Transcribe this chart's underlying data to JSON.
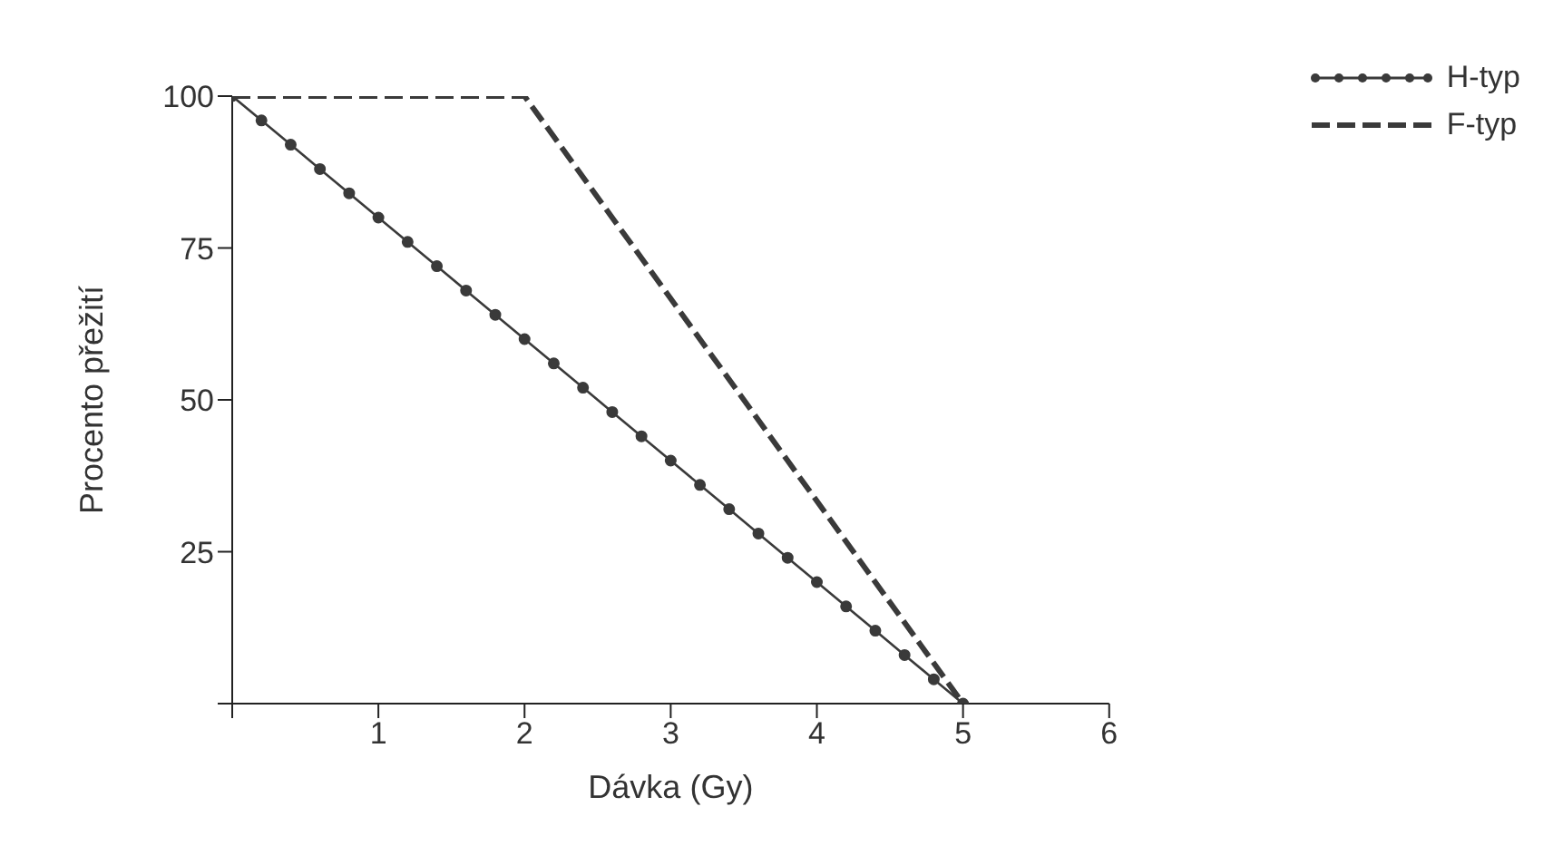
{
  "chart_data": {
    "type": "line",
    "xlabel": "Dávka (Gy)",
    "ylabel": "Procento přežití",
    "xlim": [
      0,
      6
    ],
    "ylim": [
      0,
      100
    ],
    "xticks": [
      {
        "value": 0,
        "label": null
      },
      1,
      2,
      3,
      4,
      5,
      6
    ],
    "yticks": [
      {
        "value": 0,
        "label": null
      },
      25,
      50,
      75,
      100
    ],
    "grid": false,
    "legend": "top right",
    "series": [
      {
        "name": "H-typ",
        "color": "#3a3a3a",
        "marker": "circle",
        "line_style": "solid",
        "x": [
          0,
          0.2,
          0.4,
          0.6,
          0.8,
          1,
          1.2,
          1.4,
          1.6,
          1.8,
          2,
          2.2,
          2.4,
          2.6,
          2.8,
          3,
          3.2,
          3.4,
          3.6,
          3.8,
          4,
          4.2,
          4.4,
          4.6,
          4.8,
          5
        ],
        "values": [
          100,
          96,
          92,
          88,
          84,
          80,
          76,
          72,
          68,
          64,
          60,
          56,
          52,
          48,
          44,
          40,
          36,
          32,
          28,
          24,
          20,
          16,
          12,
          8,
          4,
          0
        ]
      },
      {
        "name": "F-typ",
        "color": "#3a3a3a",
        "marker": "none",
        "line_style": "dashed",
        "x": [
          0,
          2,
          5
        ],
        "values": [
          100,
          100,
          0
        ]
      }
    ]
  }
}
